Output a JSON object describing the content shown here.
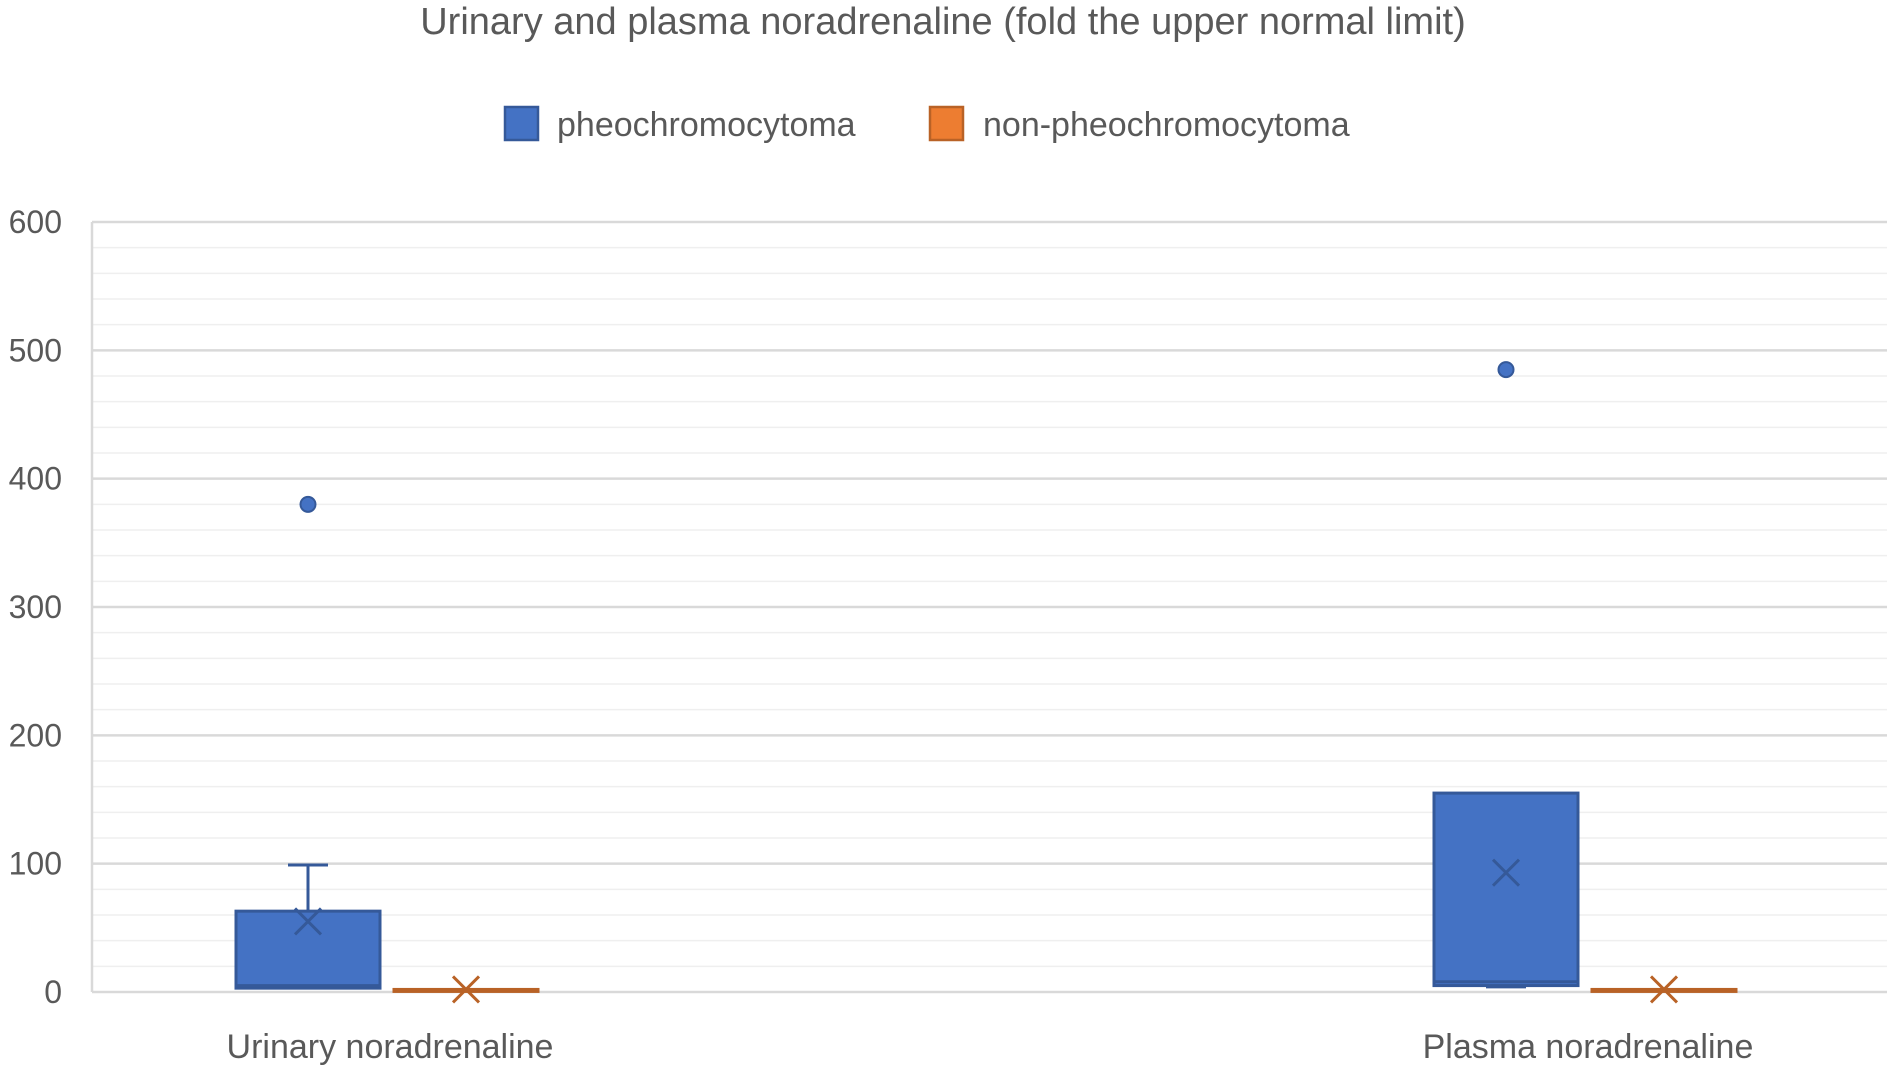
{
  "chart_data": {
    "type": "box",
    "title": "Urinary and plasma noradrenaline (fold the upper normal limit)",
    "xlabel": "",
    "ylabel": "",
    "ylim": [
      0,
      600
    ],
    "y_ticks": [
      0,
      100,
      200,
      300,
      400,
      500,
      600
    ],
    "y_tick_labels": [
      "0",
      "100",
      "200",
      "300",
      "400",
      "500",
      "600"
    ],
    "grid": true,
    "minor_grid_step": 20,
    "legend_position": "top-center",
    "categories": [
      "Urinary noradrenaline",
      "Plasma noradrenaline"
    ],
    "series": [
      {
        "name": "pheochromocytoma",
        "color": "#4472C4",
        "boxes": [
          {
            "whisker_low": 3,
            "q1": 3,
            "median": 5,
            "q3": 63,
            "whisker_high": 99,
            "mean": 55,
            "outliers": [
              380
            ]
          },
          {
            "whisker_low": 4,
            "q1": 5,
            "median": 8,
            "q3": 155,
            "whisker_high": 155,
            "mean": 93,
            "outliers": [
              485
            ]
          }
        ]
      },
      {
        "name": "non-pheochromocytoma",
        "color": "#ED7D31",
        "boxes": [
          {
            "whisker_low": 1,
            "q1": 1,
            "median": 1.5,
            "q3": 2,
            "whisker_high": 2,
            "mean": 2,
            "outliers": []
          },
          {
            "whisker_low": 1,
            "q1": 1,
            "median": 1.5,
            "q3": 2,
            "whisker_high": 2,
            "mean": 2,
            "outliers": []
          }
        ]
      }
    ]
  }
}
